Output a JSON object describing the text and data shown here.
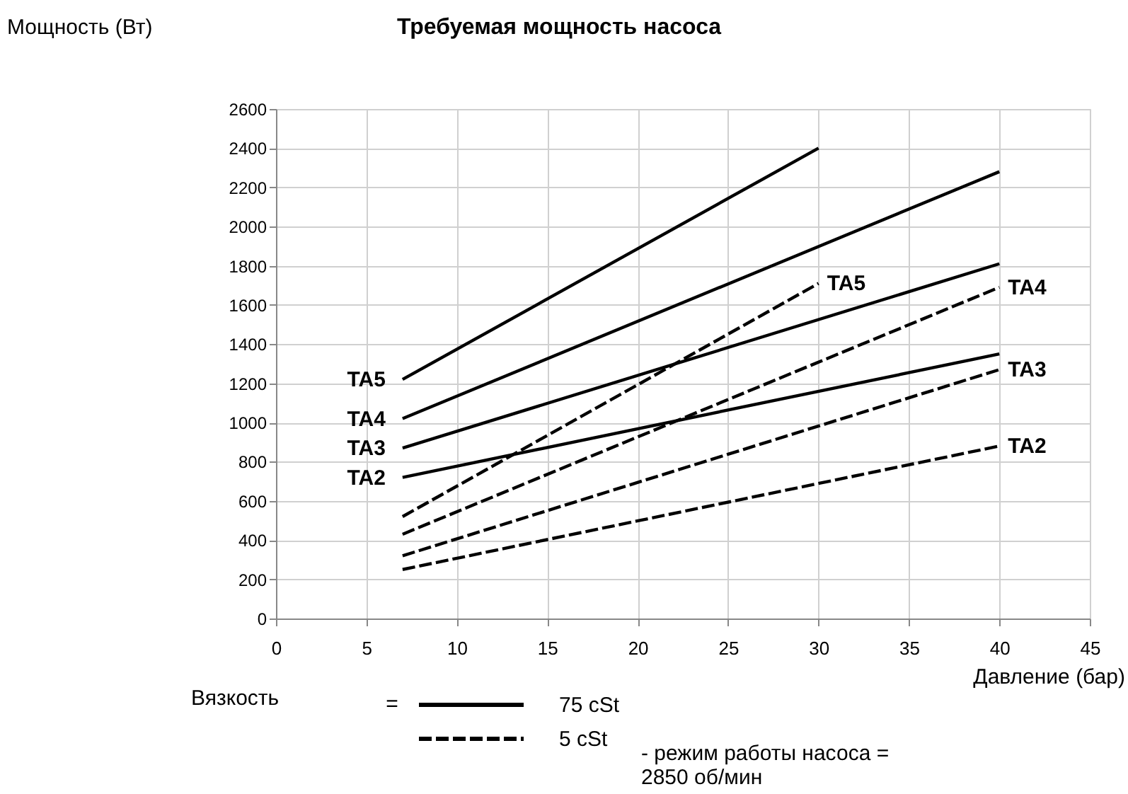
{
  "chart_data": {
    "type": "line",
    "title": "Требуемая мощность насоса",
    "xlabel": "Давление (бар)",
    "ylabel": "Мощность (Вт)",
    "xlim": [
      0,
      45
    ],
    "xticks": [
      0,
      5,
      10,
      15,
      20,
      25,
      30,
      35,
      40,
      45
    ],
    "ylim": [
      0,
      2600
    ],
    "yticks": [
      0,
      200,
      400,
      600,
      800,
      1000,
      1200,
      1400,
      1600,
      1800,
      2000,
      2200,
      2400,
      2600
    ],
    "grid": true,
    "marker": "none",
    "series": [
      {
        "name": "TA5",
        "color": "#000000",
        "line_style": "solid",
        "x": [
          7,
          30
        ],
        "values": [
          1220,
          2400
        ]
      },
      {
        "name": "TA4",
        "color": "#000000",
        "line_style": "solid",
        "x": [
          7,
          40
        ],
        "values": [
          1020,
          2280
        ]
      },
      {
        "name": "TA3",
        "color": "#000000",
        "line_style": "solid",
        "x": [
          7,
          40
        ],
        "values": [
          870,
          1810
        ]
      },
      {
        "name": "TA2",
        "color": "#000000",
        "line_style": "solid",
        "x": [
          7,
          40
        ],
        "values": [
          720,
          1350
        ]
      },
      {
        "name": "TA5",
        "color": "#000000",
        "line_style": "dashed",
        "x": [
          7,
          30
        ],
        "values": [
          520,
          1710
        ]
      },
      {
        "name": "TA4",
        "color": "#000000",
        "line_style": "dashed",
        "x": [
          7,
          40
        ],
        "values": [
          430,
          1690
        ]
      },
      {
        "name": "TA3",
        "color": "#000000",
        "line_style": "dashed",
        "x": [
          7,
          40
        ],
        "values": [
          320,
          1270
        ]
      },
      {
        "name": "TA2",
        "color": "#000000",
        "line_style": "dashed",
        "x": [
          7,
          40
        ],
        "values": [
          250,
          880
        ]
      }
    ],
    "annotations": [
      "Вязкость",
      "=",
      "75 cSt",
      "5 cSt",
      "- режим работы насоса =\n2850 об/мин"
    ]
  }
}
